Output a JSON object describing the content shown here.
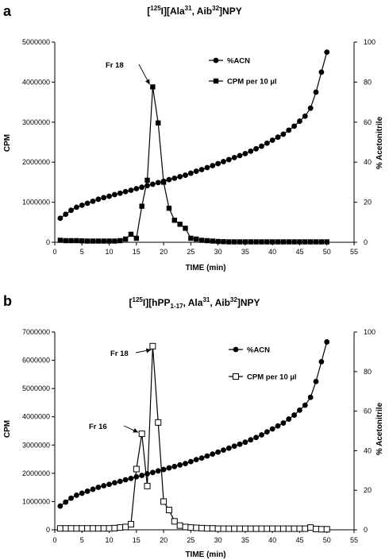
{
  "chart_data": [
    {
      "type": "line",
      "panel_label": "a",
      "title": {
        "pre": "[",
        "sup1": "125",
        "mid": "I][Ala",
        "sup2": "31",
        "mid2": ", Aib",
        "sup3": "32",
        "post": "]NPY"
      },
      "xlabel": "TIME (min)",
      "ylabel_left": "CPM",
      "ylabel_right": "% Acetonitrile",
      "xlim": [
        0,
        55
      ],
      "ylim_left": [
        0,
        5000000
      ],
      "ylim_right": [
        0,
        100
      ],
      "xticks": [
        "0",
        "5",
        "10",
        "15",
        "20",
        "25",
        "30",
        "35",
        "40",
        "45",
        "50",
        "55"
      ],
      "yticks_left": [
        "0",
        "1000000",
        "2000000",
        "3000000",
        "4000000",
        "5000000"
      ],
      "yticks_right": [
        "0",
        "20",
        "40",
        "60",
        "80",
        "100"
      ],
      "legend_position": "top-right",
      "series": [
        {
          "name": "%ACN",
          "axis": "right",
          "marker": "circle-filled",
          "x": [
            1,
            2,
            3,
            4,
            5,
            6,
            7,
            8,
            9,
            10,
            11,
            12,
            13,
            14,
            15,
            16,
            17,
            18,
            19,
            20,
            21,
            22,
            23,
            24,
            25,
            26,
            27,
            28,
            29,
            30,
            31,
            32,
            33,
            34,
            35,
            36,
            37,
            38,
            39,
            40,
            41,
            42,
            43,
            44,
            45,
            46,
            47,
            48,
            49,
            50
          ],
          "values": [
            12,
            14,
            16,
            17.5,
            18.5,
            19.5,
            20.5,
            21.5,
            22.3,
            23,
            23.8,
            24.5,
            25.3,
            26,
            26.8,
            27.5,
            28.3,
            29,
            29.8,
            30.5,
            31.3,
            32,
            32.8,
            33.5,
            34.5,
            35.5,
            36.3,
            37.3,
            38.3,
            39.3,
            40.3,
            41.3,
            42.3,
            43.3,
            44.3,
            45.5,
            46.7,
            48,
            49.5,
            51,
            52.5,
            54,
            56,
            58,
            60.5,
            63,
            67,
            75,
            85,
            95
          ]
        },
        {
          "name": "CPM per 10 µl",
          "axis": "left",
          "marker": "square-filled",
          "x": [
            1,
            2,
            3,
            4,
            5,
            6,
            7,
            8,
            9,
            10,
            11,
            12,
            13,
            14,
            15,
            16,
            17,
            18,
            19,
            20,
            21,
            22,
            23,
            24,
            25,
            26,
            27,
            28,
            29,
            30,
            31,
            32,
            33,
            34,
            35,
            36,
            37,
            38,
            39,
            40,
            41,
            42,
            43,
            44,
            45,
            46,
            47,
            48,
            49,
            50
          ],
          "values": [
            50000,
            40000,
            40000,
            40000,
            35000,
            30000,
            30000,
            30000,
            30000,
            30000,
            30000,
            40000,
            80000,
            200000,
            100000,
            900000,
            1550000,
            3880000,
            2980000,
            1500000,
            850000,
            550000,
            450000,
            350000,
            100000,
            80000,
            50000,
            40000,
            30000,
            20000,
            15000,
            10000,
            10000,
            10000,
            10000,
            10000,
            10000,
            10000,
            10000,
            10000,
            10000,
            10000,
            10000,
            10000,
            10000,
            10000,
            10000,
            10000,
            10000,
            10000
          ]
        }
      ],
      "annotations": [
        {
          "text": "Fr 18",
          "x": 18,
          "y": 3880000
        }
      ]
    },
    {
      "type": "line",
      "panel_label": "b",
      "title": {
        "pre": "[",
        "sup1": "125",
        "mid": "I][hPP",
        "sub": "1-17",
        "mid2": ", Ala",
        "sup2": "31",
        "mid3": ", Aib",
        "sup3": "32",
        "post": "]NPY"
      },
      "xlabel": "TIME (min)",
      "ylabel_left": "CPM",
      "ylabel_right": "% Acetonitrile",
      "xlim": [
        0,
        55
      ],
      "ylim_left": [
        0,
        7000000
      ],
      "ylim_right": [
        0,
        100
      ],
      "xticks": [
        "0",
        "5",
        "10",
        "15",
        "20",
        "25",
        "30",
        "35",
        "40",
        "45",
        "50",
        "55"
      ],
      "yticks_left": [
        "0",
        "1000000",
        "2000000",
        "3000000",
        "4000000",
        "5000000",
        "6000000",
        "7000000"
      ],
      "yticks_right": [
        "0",
        "20",
        "40",
        "60",
        "80",
        "100"
      ],
      "legend_position": "top-right",
      "series": [
        {
          "name": "%ACN",
          "axis": "right",
          "marker": "circle-filled",
          "x": [
            1,
            2,
            3,
            4,
            5,
            6,
            7,
            8,
            9,
            10,
            11,
            12,
            13,
            14,
            15,
            16,
            17,
            18,
            19,
            20,
            21,
            22,
            23,
            24,
            25,
            26,
            27,
            28,
            29,
            30,
            31,
            32,
            33,
            34,
            35,
            36,
            37,
            38,
            39,
            40,
            41,
            42,
            43,
            44,
            45,
            46,
            47,
            48,
            49,
            50
          ],
          "values": [
            12,
            14,
            16,
            17.5,
            18.5,
            19.5,
            20.5,
            21.5,
            22.3,
            23,
            23.8,
            24.5,
            25.3,
            26,
            26.8,
            27.5,
            28.3,
            29,
            29.8,
            30.5,
            31.3,
            32,
            32.8,
            33.5,
            34.5,
            35.5,
            36.3,
            37.3,
            38.3,
            39.3,
            40.3,
            41.3,
            42.3,
            43.3,
            44.3,
            45.5,
            46.7,
            48,
            49.5,
            51,
            52.5,
            54,
            56,
            58,
            60.5,
            63,
            67,
            75,
            85,
            95
          ]
        },
        {
          "name": "CPM per 10 µl",
          "axis": "left",
          "marker": "square-open",
          "x": [
            1,
            2,
            3,
            4,
            5,
            6,
            7,
            8,
            9,
            10,
            11,
            12,
            13,
            14,
            15,
            16,
            17,
            18,
            19,
            20,
            21,
            22,
            23,
            24,
            25,
            26,
            27,
            28,
            29,
            30,
            31,
            32,
            33,
            34,
            35,
            36,
            37,
            38,
            39,
            40,
            41,
            42,
            43,
            44,
            45,
            46,
            47,
            48,
            49,
            50
          ],
          "values": [
            50000,
            50000,
            50000,
            50000,
            50000,
            50000,
            50000,
            50000,
            50000,
            50000,
            60000,
            80000,
            100000,
            200000,
            2150000,
            3400000,
            1550000,
            6500000,
            3800000,
            1000000,
            700000,
            300000,
            150000,
            100000,
            80000,
            70000,
            60000,
            50000,
            50000,
            40000,
            40000,
            40000,
            40000,
            40000,
            40000,
            40000,
            40000,
            40000,
            40000,
            40000,
            40000,
            40000,
            40000,
            40000,
            40000,
            40000,
            80000,
            30000,
            20000,
            20000
          ]
        }
      ],
      "annotations": [
        {
          "text": "Fr 18",
          "x": 18,
          "y": 6500000
        },
        {
          "text": "Fr 16",
          "x": 16,
          "y": 3400000
        }
      ]
    }
  ]
}
